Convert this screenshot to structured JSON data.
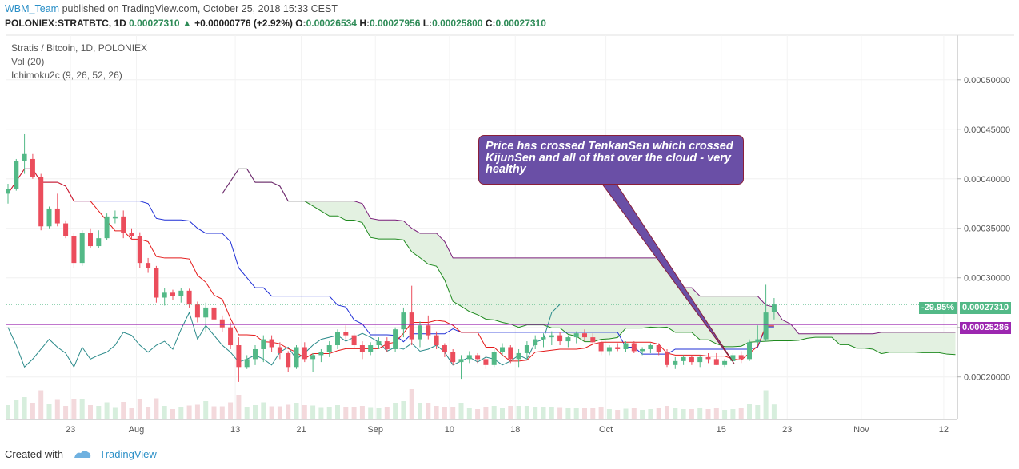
{
  "header": {
    "user": "WBM_Team",
    "published_text": "published on TradingView.com, October 25, 2018 15:33 CEST"
  },
  "quote": {
    "symbol": "POLONIEX:STRATBTC, 1D",
    "last": "0.00027310",
    "change": "+0.00000776 (+2.92%)",
    "o_label": "O:",
    "o": "0.00026534",
    "h_label": "H:",
    "h": "0.00027956",
    "l_label": "L:",
    "l": "0.00025800",
    "c_label": "C:",
    "c": "0.00027310"
  },
  "legend": {
    "title": "Stratis / Bitcoin, 1D, POLONIEX",
    "vol": "Vol (20)",
    "ichimoku": "Ichimoku2c (9, 26, 52, 26)"
  },
  "annotation": {
    "text": "Price has crossed TenkanSen which crossed KijunSen and all of that over the cloud - very healthy"
  },
  "tags": {
    "pct": "-29.95%",
    "last_price": "0.00027310",
    "hline_price": "0.00025286"
  },
  "footer": {
    "created_with": "Created with",
    "brand": "TradingView"
  },
  "colors": {
    "up": "#53b987",
    "down": "#eb4d5c",
    "tenkan": "#e41a1a",
    "kijun": "#1f2fd6",
    "chikou": "#2a8a8a",
    "senkou_a": "#1f8a1f",
    "senkou_b": "#7a1f7a",
    "cloud": "#e3f1e1",
    "hline": "#9c27b0",
    "callout_bg": "#6a4fa6"
  },
  "chart_data": {
    "type": "candlestick",
    "title": "Stratis / Bitcoin, 1D, POLONIEX",
    "ylim": [
      0.000157,
      0.000545
    ],
    "y_ticks": [
      "0.00020000",
      "0.00025000",
      "0.00030000",
      "0.00035000",
      "0.00040000",
      "0.00045000",
      "0.00050000"
    ],
    "x_ticks": [
      "23",
      "Aug",
      "13",
      "21",
      "Sep",
      "10",
      "18",
      "Oct",
      "15",
      "23",
      "Nov",
      "12"
    ],
    "horizontal_line": 0.00025286,
    "last_price": 0.0002731,
    "candles": [
      [
        0.000385,
        0.000395,
        0.000375,
        0.00039
      ],
      [
        0.00039,
        0.00042,
        0.000388,
        0.000418
      ],
      [
        0.000418,
        0.000445,
        0.000405,
        0.000425
      ],
      [
        0.00042,
        0.000425,
        0.0004,
        0.000402
      ],
      [
        0.000402,
        0.000405,
        0.000348,
        0.000352
      ],
      [
        0.000352,
        0.000372,
        0.00035,
        0.00037
      ],
      [
        0.00037,
        0.000385,
        0.000352,
        0.000355
      ],
      [
        0.000355,
        0.000358,
        0.00034,
        0.000342
      ],
      [
        0.000342,
        0.000345,
        0.00031,
        0.000315
      ],
      [
        0.000315,
        0.000348,
        0.000312,
        0.000345
      ],
      [
        0.000345,
        0.00035,
        0.00033,
        0.000332
      ],
      [
        0.000332,
        0.000348,
        0.00033,
        0.00034
      ],
      [
        0.00034,
        0.000365,
        0.000338,
        0.000362
      ],
      [
        0.00036,
        0.000368,
        0.000355,
        0.000362
      ],
      [
        0.000362,
        0.000368,
        0.00034,
        0.000345
      ],
      [
        0.000345,
        0.00035,
        0.000338,
        0.000342
      ],
      [
        0.000342,
        0.000346,
        0.00031,
        0.000315
      ],
      [
        0.000315,
        0.00032,
        0.000305,
        0.00031
      ],
      [
        0.00031,
        0.000312,
        0.000275,
        0.00028
      ],
      [
        0.00028,
        0.00029,
        0.000272,
        0.000285
      ],
      [
        0.000285,
        0.000288,
        0.000278,
        0.000282
      ],
      [
        0.000282,
        0.00029,
        0.000275,
        0.000287
      ],
      [
        0.000287,
        0.000289,
        0.00027,
        0.000273
      ],
      [
        0.000273,
        0.000276,
        0.000255,
        0.00026
      ],
      [
        0.00026,
        0.000275,
        0.000245,
        0.00027
      ],
      [
        0.00027,
        0.000272,
        0.000255,
        0.000258
      ],
      [
        0.000258,
        0.000262,
        0.000245,
        0.00025
      ],
      [
        0.00025,
        0.000255,
        0.000228,
        0.000232
      ],
      [
        0.000232,
        0.00024,
        0.000195,
        0.00021
      ],
      [
        0.00021,
        0.000222,
        0.000208,
        0.000218
      ],
      [
        0.000218,
        0.000232,
        0.000212,
        0.000228
      ],
      [
        0.000228,
        0.000242,
        0.000215,
        0.000238
      ],
      [
        0.000238,
        0.000242,
        0.000225,
        0.00023
      ],
      [
        0.00023,
        0.000235,
        0.000218,
        0.000224
      ],
      [
        0.000224,
        0.000226,
        0.000205,
        0.00021
      ],
      [
        0.00021,
        0.000232,
        0.000208,
        0.00023
      ],
      [
        0.00023,
        0.000235,
        0.000215,
        0.000218
      ],
      [
        0.000218,
        0.000224,
        0.000205,
        0.000222
      ],
      [
        0.000222,
        0.000228,
        0.000215,
        0.000225
      ],
      [
        0.000225,
        0.000236,
        0.00022,
        0.000232
      ],
      [
        0.000232,
        0.000248,
        0.000228,
        0.000245
      ],
      [
        0.000245,
        0.000252,
        0.000238,
        0.000242
      ],
      [
        0.000242,
        0.000244,
        0.000228,
        0.000232
      ],
      [
        0.000232,
        0.000236,
        0.000218,
        0.000225
      ],
      [
        0.000225,
        0.000235,
        0.000222,
        0.000232
      ],
      [
        0.000232,
        0.00024,
        0.000228,
        0.000236
      ],
      [
        0.000236,
        0.00024,
        0.000225,
        0.000228
      ],
      [
        0.000228,
        0.00025,
        0.000225,
        0.000248
      ],
      [
        0.000248,
        0.00027,
        0.00024,
        0.000265
      ],
      [
        0.000265,
        0.000292,
        0.000232,
        0.000238
      ],
      [
        0.000238,
        0.000256,
        0.00023,
        0.000252
      ],
      [
        0.000252,
        0.000262,
        0.000238,
        0.000242
      ],
      [
        0.000242,
        0.000246,
        0.000228,
        0.000232
      ],
      [
        0.000232,
        0.000234,
        0.00022,
        0.000225
      ],
      [
        0.000225,
        0.000228,
        0.000212,
        0.000215
      ],
      [
        0.000215,
        0.000222,
        0.000198,
        0.000218
      ],
      [
        0.000218,
        0.000226,
        0.000214,
        0.000222
      ],
      [
        0.000222,
        0.000224,
        0.000214,
        0.000218
      ],
      [
        0.000218,
        0.000222,
        0.000208,
        0.000212
      ],
      [
        0.000212,
        0.000228,
        0.00021,
        0.000225
      ],
      [
        0.000225,
        0.000234,
        0.000222,
        0.00023
      ],
      [
        0.00023,
        0.000232,
        0.000214,
        0.000218
      ],
      [
        0.000218,
        0.000228,
        0.00021,
        0.000224
      ],
      [
        0.000224,
        0.000236,
        0.000218,
        0.000232
      ],
      [
        0.000232,
        0.000242,
        0.000228,
        0.000238
      ],
      [
        0.000238,
        0.000244,
        0.00023,
        0.00024
      ],
      [
        0.00024,
        0.000246,
        0.000232,
        0.000242
      ],
      [
        0.000242,
        0.000245,
        0.000232,
        0.000236
      ],
      [
        0.000236,
        0.000242,
        0.00023,
        0.00024
      ],
      [
        0.00024,
        0.000246,
        0.000234,
        0.000244
      ],
      [
        0.000244,
        0.000248,
        0.000236,
        0.00024
      ],
      [
        0.00024,
        0.000244,
        0.000232,
        0.000235
      ],
      [
        0.000235,
        0.000238,
        0.000222,
        0.000226
      ],
      [
        0.000226,
        0.000232,
        0.000222,
        0.00023
      ],
      [
        0.00023,
        0.000234,
        0.000226,
        0.000228
      ],
      [
        0.000228,
        0.000236,
        0.000225,
        0.000234
      ],
      [
        0.000234,
        0.000236,
        0.000224,
        0.000226
      ],
      [
        0.000226,
        0.00023,
        0.000222,
        0.000228
      ],
      [
        0.000228,
        0.000234,
        0.000224,
        0.000232
      ],
      [
        0.000232,
        0.000234,
        0.000222,
        0.000225
      ],
      [
        0.000225,
        0.000228,
        0.00021,
        0.000212
      ],
      [
        0.000212,
        0.00022,
        0.000208,
        0.000216
      ],
      [
        0.000216,
        0.000222,
        0.000212,
        0.00022
      ],
      [
        0.00022,
        0.000222,
        0.000212,
        0.000215
      ],
      [
        0.000215,
        0.000222,
        0.00021,
        0.00022
      ],
      [
        0.00022,
        0.000224,
        0.000214,
        0.000218
      ],
      [
        0.000218,
        0.000224,
        0.000212,
        0.000212
      ],
      [
        0.000212,
        0.000218,
        0.00021,
        0.000216
      ],
      [
        0.000216,
        0.000224,
        0.000214,
        0.000222
      ],
      [
        0.000222,
        0.000226,
        0.000214,
        0.000218
      ],
      [
        0.000218,
        0.000238,
        0.000216,
        0.000235
      ],
      [
        0.000235,
        0.000252,
        0.000232,
        0.000238
      ],
      [
        0.000238,
        0.000293,
        0.000236,
        0.000265
      ],
      [
        0.0002653,
        0.0002796,
        0.000258,
        0.0002731
      ]
    ]
  }
}
